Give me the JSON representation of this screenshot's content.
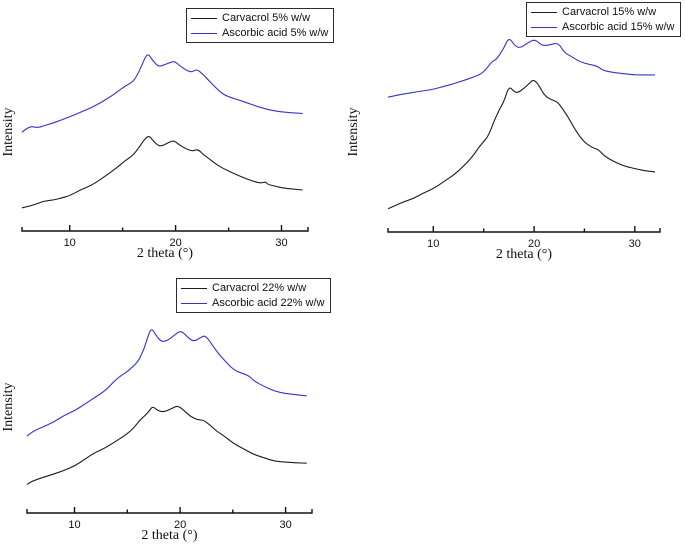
{
  "figure": {
    "background_color": "#ffffff",
    "axis_color": "#111111",
    "carvacrol_color": "#1c1c1c",
    "ascorbic_color": "#3333cc",
    "tick_labels": [
      "10",
      "20",
      "30"
    ]
  },
  "chart_data": [
    {
      "type": "line",
      "title": "",
      "xlabel": "2 theta (°)",
      "ylabel": "Intensity",
      "xlim": [
        5.5,
        32.5
      ],
      "x_ticks": [
        10,
        20,
        30
      ],
      "x_minor_ticks": [
        15,
        25
      ],
      "grid": false,
      "legend_position": "top-right-inside",
      "y_units": "arbitrary intensity, 0-100 relative scale",
      "series": [
        {
          "name": "Carvacrol 5% w/w",
          "color": "#1c1c1c",
          "points": [
            [
              5.5,
              10
            ],
            [
              6.5,
              11
            ],
            [
              7.5,
              13
            ],
            [
              8.5,
              13.5
            ],
            [
              9.3,
              14.5
            ],
            [
              10,
              15.5
            ],
            [
              11,
              18
            ],
            [
              12,
              20
            ],
            [
              13,
              23
            ],
            [
              14,
              26.5
            ],
            [
              14.7,
              29
            ],
            [
              15.3,
              31.5
            ],
            [
              15.8,
              33
            ],
            [
              16.3,
              35.5
            ],
            [
              16.8,
              39
            ],
            [
              17.2,
              41.5
            ],
            [
              17.5,
              42.5
            ],
            [
              18,
              39.5
            ],
            [
              18.5,
              37.5
            ],
            [
              19.2,
              39
            ],
            [
              19.8,
              40.5
            ],
            [
              20.3,
              38.5
            ],
            [
              21,
              36.5
            ],
            [
              21.6,
              35.5
            ],
            [
              22.1,
              36.5
            ],
            [
              22.6,
              34
            ],
            [
              23.2,
              32
            ],
            [
              24,
              29
            ],
            [
              24.8,
              27
            ],
            [
              25.5,
              25.5
            ],
            [
              26.2,
              24
            ],
            [
              27,
              22.5
            ],
            [
              28,
              21
            ],
            [
              28.5,
              21.8
            ],
            [
              28.7,
              20.5
            ],
            [
              29.2,
              20
            ],
            [
              30,
              19
            ],
            [
              31,
              18.5
            ],
            [
              32,
              18
            ]
          ]
        },
        {
          "name": "Ascorbic acid 5% w/w",
          "color": "#3333cc",
          "points": [
            [
              5.5,
              44
            ],
            [
              6.2,
              47
            ],
            [
              6.9,
              46
            ],
            [
              7.6,
              47
            ],
            [
              8.3,
              48
            ],
            [
              9.2,
              49.5
            ],
            [
              10,
              51
            ],
            [
              11,
              53
            ],
            [
              12,
              55
            ],
            [
              13,
              57.5
            ],
            [
              14,
              60.5
            ],
            [
              14.7,
              63
            ],
            [
              15.3,
              65
            ],
            [
              15.9,
              66.5
            ],
            [
              16.3,
              69
            ],
            [
              16.8,
              74
            ],
            [
              17.1,
              77.5
            ],
            [
              17.4,
              79.5
            ],
            [
              17.9,
              76
            ],
            [
              18.4,
              73.5
            ],
            [
              19,
              74.5
            ],
            [
              19.5,
              75.5
            ],
            [
              19.9,
              76
            ],
            [
              20.4,
              74
            ],
            [
              21,
              72
            ],
            [
              21.5,
              71
            ],
            [
              22,
              72.5
            ],
            [
              22.5,
              70.5
            ],
            [
              23,
              68
            ],
            [
              23.7,
              64.5
            ],
            [
              24.5,
              61
            ],
            [
              25.3,
              59.5
            ],
            [
              26,
              58.5
            ],
            [
              26.6,
              57.5
            ],
            [
              27.5,
              56
            ],
            [
              28.5,
              54.5
            ],
            [
              29.5,
              53.5
            ],
            [
              30.5,
              53
            ],
            [
              31.2,
              52.7
            ],
            [
              32,
              52.5
            ]
          ]
        }
      ]
    },
    {
      "type": "line",
      "title": "",
      "xlabel": "2 theta (°)",
      "ylabel": "Intensity",
      "xlim": [
        5.5,
        32.5
      ],
      "x_ticks": [
        10,
        20,
        30
      ],
      "x_minor_ticks": [
        15,
        25
      ],
      "grid": false,
      "legend_position": "top-right-inside",
      "y_units": "arbitrary intensity, 0-100 relative scale",
      "series": [
        {
          "name": "Carvacrol 15% w/w",
          "color": "#1c1c1c",
          "points": [
            [
              5.5,
              10
            ],
            [
              6,
              11
            ],
            [
              7,
              13
            ],
            [
              8,
              14.5
            ],
            [
              9,
              17
            ],
            [
              10,
              19
            ],
            [
              11,
              22
            ],
            [
              12,
              25
            ],
            [
              13,
              29
            ],
            [
              14,
              34
            ],
            [
              14.5,
              37.5
            ],
            [
              15,
              40
            ],
            [
              15.5,
              43
            ],
            [
              16,
              49
            ],
            [
              16.5,
              54
            ],
            [
              17,
              58
            ],
            [
              17.5,
              65
            ],
            [
              18,
              62.5
            ],
            [
              18.4,
              62
            ],
            [
              19,
              64
            ],
            [
              19.5,
              66
            ],
            [
              19.9,
              68
            ],
            [
              20.4,
              66
            ],
            [
              21,
              61
            ],
            [
              21.6,
              59
            ],
            [
              22.3,
              58
            ],
            [
              22.8,
              55
            ],
            [
              23.4,
              51
            ],
            [
              24,
              46
            ],
            [
              24.6,
              42
            ],
            [
              25.2,
              39
            ],
            [
              26,
              37
            ],
            [
              26.4,
              36.5
            ],
            [
              27,
              33.5
            ],
            [
              28,
              31
            ],
            [
              29,
              29
            ],
            [
              30,
              28
            ],
            [
              31,
              27
            ],
            [
              32,
              26.5
            ]
          ]
        },
        {
          "name": "Ascorbic acid 15% w/w",
          "color": "#3333cc",
          "points": [
            [
              5.5,
              60
            ],
            [
              6.5,
              61
            ],
            [
              7.5,
              61.8
            ],
            [
              8.5,
              62.5
            ],
            [
              10,
              63.5
            ],
            [
              11,
              64.8
            ],
            [
              12,
              66
            ],
            [
              13,
              67.5
            ],
            [
              14,
              69
            ],
            [
              15,
              71
            ],
            [
              15.8,
              76
            ],
            [
              16.3,
              77
            ],
            [
              17,
              82
            ],
            [
              17.5,
              87
            ],
            [
              18.1,
              83
            ],
            [
              18.6,
              82
            ],
            [
              19.4,
              84.5
            ],
            [
              20.1,
              86
            ],
            [
              20.8,
              83
            ],
            [
              21.6,
              83.5
            ],
            [
              22.4,
              84.5
            ],
            [
              23,
              80
            ],
            [
              23.8,
              78
            ],
            [
              24.5,
              76
            ],
            [
              25.2,
              75
            ],
            [
              26.3,
              74
            ],
            [
              26.8,
              72
            ],
            [
              28,
              71
            ],
            [
              29,
              70.5
            ],
            [
              30,
              70
            ],
            [
              31,
              70
            ],
            [
              32,
              70
            ]
          ]
        }
      ]
    },
    {
      "type": "line",
      "title": "",
      "xlabel": "2 theta (°)",
      "ylabel": "Intensity",
      "xlim": [
        5.5,
        32.5
      ],
      "x_ticks": [
        10,
        20,
        30
      ],
      "x_minor_ticks": [
        15,
        25
      ],
      "grid": false,
      "legend_position": "top-right-inside",
      "y_units": "arbitrary intensity, 0-100 relative scale",
      "series": [
        {
          "name": "Carvacrol 22% w/w",
          "color": "#1c1c1c",
          "points": [
            [
              5.5,
              12
            ],
            [
              6,
              13.5
            ],
            [
              7,
              15
            ],
            [
              8,
              16.5
            ],
            [
              9,
              18
            ],
            [
              10,
              20
            ],
            [
              11,
              23
            ],
            [
              12,
              26
            ],
            [
              13,
              28
            ],
            [
              14,
              31
            ],
            [
              15,
              34
            ],
            [
              15.7,
              37
            ],
            [
              16.2,
              40
            ],
            [
              16.7,
              42
            ],
            [
              17.1,
              44
            ],
            [
              17.4,
              46
            ],
            [
              17.9,
              44
            ],
            [
              18.5,
              43.5
            ],
            [
              19.2,
              45
            ],
            [
              19.8,
              46.3
            ],
            [
              20.4,
              44
            ],
            [
              21,
              41.5
            ],
            [
              21.7,
              40
            ],
            [
              22.2,
              40
            ],
            [
              22.8,
              38
            ],
            [
              23.5,
              35
            ],
            [
              24.2,
              33
            ],
            [
              25,
              30
            ],
            [
              26,
              27.5
            ],
            [
              27,
              25
            ],
            [
              28,
              23.5
            ],
            [
              29,
              22
            ],
            [
              30,
              21.7
            ],
            [
              31,
              21.4
            ],
            [
              32,
              21.2
            ]
          ]
        },
        {
          "name": "Ascorbic acid 22% w/w",
          "color": "#3333cc",
          "points": [
            [
              5.5,
              33
            ],
            [
              6,
              35
            ],
            [
              7,
              37
            ],
            [
              8,
              39
            ],
            [
              9,
              42
            ],
            [
              10,
              44
            ],
            [
              11,
              47
            ],
            [
              12,
              50
            ],
            [
              13,
              53
            ],
            [
              14,
              58
            ],
            [
              15,
              61
            ],
            [
              15.6,
              63.5
            ],
            [
              16.1,
              66
            ],
            [
              16.6,
              71
            ],
            [
              17,
              77
            ],
            [
              17.3,
              80
            ],
            [
              17.7,
              77
            ],
            [
              18.2,
              74
            ],
            [
              18.8,
              74.5
            ],
            [
              19.5,
              77
            ],
            [
              20.1,
              79
            ],
            [
              20.7,
              76
            ],
            [
              21.3,
              74
            ],
            [
              22,
              76
            ],
            [
              22.4,
              76.8
            ],
            [
              23,
              73
            ],
            [
              23.6,
              69
            ],
            [
              24.2,
              66
            ],
            [
              24.8,
              63
            ],
            [
              25.4,
              61
            ],
            [
              26.1,
              60
            ],
            [
              26.6,
              59
            ],
            [
              27,
              57
            ],
            [
              28,
              54.5
            ],
            [
              29,
              52.5
            ],
            [
              30,
              51.5
            ],
            [
              31,
              51
            ],
            [
              32,
              50.5
            ]
          ]
        }
      ]
    }
  ]
}
